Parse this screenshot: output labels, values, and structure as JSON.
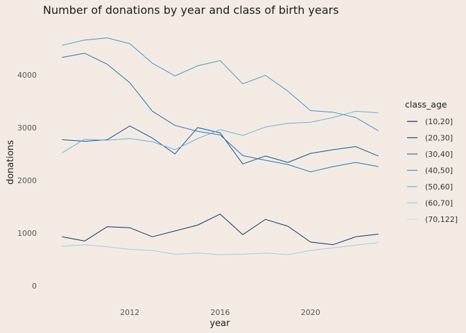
{
  "chart_data": {
    "type": "line",
    "title": "Number of donations by year and class of birth years",
    "xlabel": "year",
    "ylabel": "donations",
    "xlim": [
      2008.25,
      2023.75
    ],
    "ylim": [
      -250,
      5050
    ],
    "x_ticks": [
      2012,
      2016,
      2020
    ],
    "y_ticks": [
      0,
      1000,
      2000,
      3000,
      4000
    ],
    "grid": false,
    "legend": {
      "title": "class_age",
      "position": "right"
    },
    "x": [
      2009,
      2010,
      2011,
      2012,
      2013,
      2014,
      2015,
      2016,
      2017,
      2018,
      2019,
      2020,
      2021,
      2022,
      2023
    ],
    "series": [
      {
        "name": "(10,20]",
        "color": "#08306b",
        "values": [
          930,
          850,
          1120,
          1100,
          930,
          1040,
          1150,
          1360,
          970,
          1260,
          1130,
          830,
          780,
          930,
          980
        ]
      },
      {
        "name": "(20,30]",
        "color": "#08519c",
        "values": [
          2770,
          2740,
          2770,
          3030,
          2800,
          2500,
          3000,
          2900,
          2310,
          2460,
          2340,
          2510,
          2580,
          2640,
          2460
        ]
      },
      {
        "name": "(30,40]",
        "color": "#2171b5",
        "values": [
          4330,
          4410,
          4200,
          3850,
          3310,
          3040,
          2930,
          2860,
          2470,
          2380,
          2300,
          2160,
          2260,
          2340,
          2260
        ]
      },
      {
        "name": "(40,50]",
        "color": "#4292c6",
        "values": [
          4560,
          4660,
          4700,
          4590,
          4220,
          3980,
          4170,
          4270,
          3830,
          3990,
          3690,
          3320,
          3290,
          3190,
          2940
        ]
      },
      {
        "name": "(50,60]",
        "color": "#6baed6",
        "values": [
          2520,
          2780,
          2760,
          2790,
          2730,
          2580,
          2790,
          2960,
          2850,
          3010,
          3080,
          3100,
          3190,
          3310,
          3280
        ]
      },
      {
        "name": "(60,70]",
        "color": "#9ecae1",
        "values": [
          750,
          780,
          740,
          690,
          670,
          600,
          620,
          590,
          600,
          620,
          590,
          670,
          720,
          770,
          820
        ]
      },
      {
        "name": "(70,122]",
        "color": "#c6dbef",
        "values": [
          null,
          null,
          null,
          null,
          null,
          null,
          null,
          null,
          null,
          null,
          null,
          null,
          null,
          null,
          null
        ]
      }
    ]
  }
}
